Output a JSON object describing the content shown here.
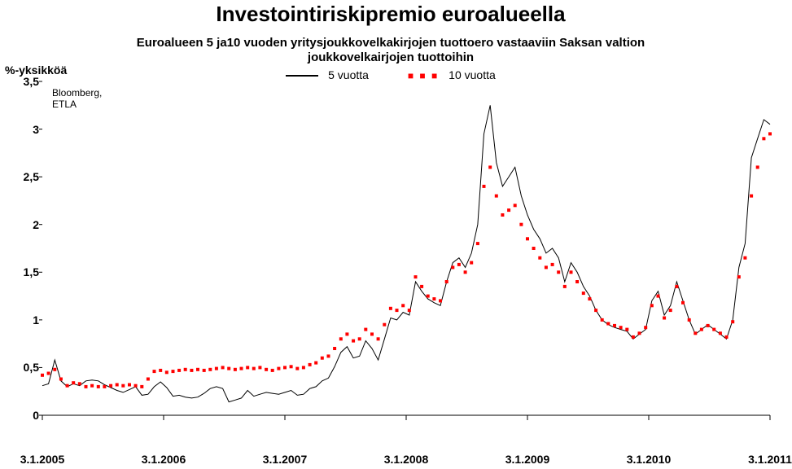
{
  "title": "Investointiriskipremio euroalueella",
  "title_fontsize": 26,
  "subtitle_line1": "Euroalueen 5 ja10 vuoden yritysjoukkovelkakirjojen tuottoero vastaaviin Saksan valtion",
  "subtitle_line2": "joukkovelkairjojen tuottoihin",
  "subtitle_fontsize": 15,
  "yaxis_label": "%-yksikköä",
  "source_line1": "Bloomberg,",
  "source_line2": "ETLA",
  "legend": {
    "series_a": "5 vuotta",
    "series_b": "10 vuotta"
  },
  "chart": {
    "type": "line",
    "background_color": "#ffffff",
    "ylim": [
      0,
      3.5
    ],
    "ytick_step": 0.5,
    "ytick_labels": [
      "0",
      "0,5",
      "1",
      "1,5",
      "2",
      "2,5",
      "3",
      "3,5"
    ],
    "x_categories": [
      "3.1.2005",
      "3.1.2006",
      "3.1.2007",
      "3.1.2008",
      "3.1.2009",
      "3.1.2010",
      "3.1.2011"
    ],
    "series_a": {
      "name": "5 vuotta",
      "color": "#000000",
      "line_width": 1,
      "dash": "none",
      "marker": "none",
      "values": [
        0.31,
        0.33,
        0.58,
        0.36,
        0.3,
        0.33,
        0.31,
        0.36,
        0.37,
        0.36,
        0.32,
        0.29,
        0.26,
        0.24,
        0.27,
        0.3,
        0.21,
        0.22,
        0.3,
        0.35,
        0.29,
        0.2,
        0.21,
        0.19,
        0.18,
        0.19,
        0.23,
        0.28,
        0.3,
        0.28,
        0.14,
        0.16,
        0.18,
        0.26,
        0.2,
        0.22,
        0.24,
        0.23,
        0.22,
        0.24,
        0.26,
        0.21,
        0.22,
        0.28,
        0.3,
        0.36,
        0.39,
        0.51,
        0.66,
        0.72,
        0.6,
        0.62,
        0.78,
        0.7,
        0.58,
        0.8,
        1.02,
        1.0,
        1.08,
        1.05,
        1.4,
        1.3,
        1.22,
        1.18,
        1.15,
        1.4,
        1.6,
        1.65,
        1.55,
        1.7,
        2.0,
        2.95,
        3.25,
        2.65,
        2.4,
        2.5,
        2.6,
        2.3,
        2.1,
        1.95,
        1.85,
        1.7,
        1.75,
        1.65,
        1.4,
        1.6,
        1.5,
        1.35,
        1.25,
        1.1,
        1.0,
        0.95,
        0.92,
        0.9,
        0.88,
        0.8,
        0.85,
        0.9,
        1.2,
        1.3,
        1.05,
        1.15,
        1.4,
        1.2,
        1.0,
        0.85,
        0.9,
        0.95,
        0.9,
        0.85,
        0.8,
        1.0,
        1.55,
        1.8,
        2.7,
        2.9,
        3.1,
        3.05
      ]
    },
    "series_b": {
      "name": "10 vuotta",
      "color": "#ff0000",
      "line_width": 2,
      "marker": "square",
      "marker_size": 4,
      "values": [
        0.42,
        0.44,
        0.48,
        0.38,
        0.31,
        0.34,
        0.33,
        0.3,
        0.31,
        0.3,
        0.3,
        0.31,
        0.32,
        0.31,
        0.32,
        0.31,
        0.3,
        0.38,
        0.46,
        0.47,
        0.45,
        0.46,
        0.47,
        0.48,
        0.47,
        0.48,
        0.47,
        0.48,
        0.49,
        0.5,
        0.49,
        0.48,
        0.49,
        0.5,
        0.49,
        0.5,
        0.48,
        0.47,
        0.49,
        0.5,
        0.51,
        0.49,
        0.5,
        0.53,
        0.55,
        0.6,
        0.62,
        0.7,
        0.8,
        0.85,
        0.78,
        0.8,
        0.9,
        0.85,
        0.8,
        0.95,
        1.12,
        1.1,
        1.15,
        1.1,
        1.45,
        1.35,
        1.25,
        1.22,
        1.2,
        1.4,
        1.55,
        1.58,
        1.5,
        1.6,
        1.8,
        2.4,
        2.6,
        2.3,
        2.1,
        2.15,
        2.2,
        2.0,
        1.85,
        1.75,
        1.65,
        1.55,
        1.58,
        1.5,
        1.35,
        1.5,
        1.4,
        1.28,
        1.22,
        1.1,
        1.0,
        0.96,
        0.94,
        0.92,
        0.9,
        0.82,
        0.86,
        0.92,
        1.15,
        1.25,
        1.02,
        1.1,
        1.35,
        1.18,
        1.0,
        0.86,
        0.9,
        0.94,
        0.9,
        0.86,
        0.82,
        0.98,
        1.45,
        1.65,
        2.3,
        2.6,
        2.9,
        2.95
      ]
    }
  }
}
